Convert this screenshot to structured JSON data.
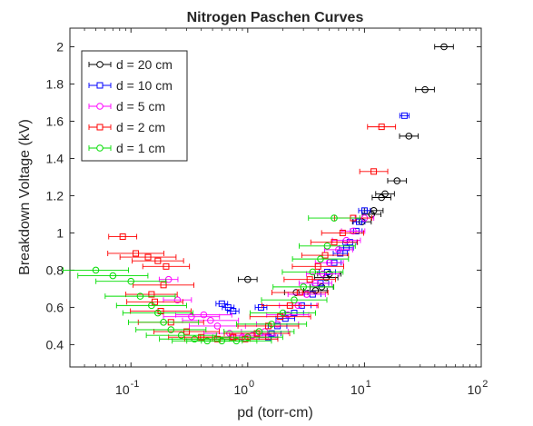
{
  "chart_data": {
    "type": "scatter",
    "title": "Nitrogen Paschen Curves",
    "xlabel": "pd (torr-cm)",
    "ylabel": "Breakdown Voltage (kV)",
    "xscale": "log",
    "xlim": [
      0.03,
      100
    ],
    "ylim": [
      0.28,
      2.1
    ],
    "grid": false,
    "legend_position": "top-left",
    "x_ticks": [
      {
        "base": "10",
        "exp": "-1",
        "value": 0.1
      },
      {
        "base": "10",
        "exp": "0",
        "value": 1
      },
      {
        "base": "10",
        "exp": "1",
        "value": 10
      },
      {
        "base": "10",
        "exp": "2",
        "value": 100
      }
    ],
    "y_ticks": [
      "0.4",
      "0.6",
      "0.8",
      "1",
      "1.2",
      "1.4",
      "1.6",
      "1.8",
      "2"
    ],
    "series": [
      {
        "name": "d = 20 cm",
        "color": "#000000",
        "marker": "circle",
        "points": [
          {
            "x": 48,
            "y": 2.0,
            "xerr": 0.08
          },
          {
            "x": 33,
            "y": 1.77,
            "xerr": 0.08
          },
          {
            "x": 24,
            "y": 1.52,
            "xerr": 0.08
          },
          {
            "x": 19,
            "y": 1.28,
            "xerr": 0.08
          },
          {
            "x": 15,
            "y": 1.21,
            "xerr": 0.08
          },
          {
            "x": 14,
            "y": 1.19,
            "xerr": 0.08
          },
          {
            "x": 12,
            "y": 1.12,
            "xerr": 0.08
          },
          {
            "x": 11.5,
            "y": 1.1,
            "xerr": 0.08
          },
          {
            "x": 9.5,
            "y": 1.06,
            "xerr": 0.08
          },
          {
            "x": 5.0,
            "y": 0.78,
            "xerr": 0.1
          },
          {
            "x": 4.7,
            "y": 0.76,
            "xerr": 0.1
          },
          {
            "x": 4.3,
            "y": 0.71,
            "xerr": 0.1
          },
          {
            "x": 3.8,
            "y": 0.69,
            "xerr": 0.1
          },
          {
            "x": 2.6,
            "y": 0.68,
            "xerr": 0.1
          },
          {
            "x": 1.0,
            "y": 0.75,
            "xerr": 0.08
          }
        ]
      },
      {
        "name": "d = 10 cm",
        "color": "#0000ff",
        "marker": "square",
        "points": [
          {
            "x": 22,
            "y": 1.63,
            "xerr": 0.04
          },
          {
            "x": 10,
            "y": 1.12,
            "xerr": 0.05
          },
          {
            "x": 9.0,
            "y": 1.06,
            "xerr": 0.05
          },
          {
            "x": 8.5,
            "y": 1.01,
            "xerr": 0.05
          },
          {
            "x": 7.5,
            "y": 0.95,
            "xerr": 0.06
          },
          {
            "x": 7.0,
            "y": 0.92,
            "xerr": 0.06
          },
          {
            "x": 6.2,
            "y": 0.89,
            "xerr": 0.06
          },
          {
            "x": 5.5,
            "y": 0.84,
            "xerr": 0.06
          },
          {
            "x": 4.8,
            "y": 0.79,
            "xerr": 0.07
          },
          {
            "x": 4.2,
            "y": 0.73,
            "xerr": 0.07
          },
          {
            "x": 3.6,
            "y": 0.67,
            "xerr": 0.07
          },
          {
            "x": 2.9,
            "y": 0.61,
            "xerr": 0.08
          },
          {
            "x": 2.5,
            "y": 0.57,
            "xerr": 0.08
          },
          {
            "x": 2.1,
            "y": 0.54,
            "xerr": 0.08
          },
          {
            "x": 1.8,
            "y": 0.5,
            "xerr": 0.08
          },
          {
            "x": 1.6,
            "y": 0.46,
            "xerr": 0.08
          },
          {
            "x": 1.5,
            "y": 0.44,
            "xerr": 0.08
          },
          {
            "x": 1.3,
            "y": 0.6,
            "xerr": 0.05
          },
          {
            "x": 0.75,
            "y": 0.58,
            "xerr": 0.05
          },
          {
            "x": 0.68,
            "y": 0.6,
            "xerr": 0.05
          },
          {
            "x": 0.6,
            "y": 0.62,
            "xerr": 0.05
          }
        ]
      },
      {
        "name": "d = 5 cm",
        "color": "#ff00ff",
        "marker": "circle",
        "points": [
          {
            "x": 10,
            "y": 1.08,
            "xerr": 0.08
          },
          {
            "x": 8,
            "y": 1.01,
            "xerr": 0.1
          },
          {
            "x": 7,
            "y": 0.96,
            "xerr": 0.12
          },
          {
            "x": 6,
            "y": 0.91,
            "xerr": 0.12
          },
          {
            "x": 5,
            "y": 0.84,
            "xerr": 0.12
          },
          {
            "x": 4.4,
            "y": 0.78,
            "xerr": 0.14
          },
          {
            "x": 3.8,
            "y": 0.73,
            "xerr": 0.14
          },
          {
            "x": 3.2,
            "y": 0.67,
            "xerr": 0.16
          },
          {
            "x": 2.7,
            "y": 0.61,
            "xerr": 0.16
          },
          {
            "x": 2.2,
            "y": 0.56,
            "xerr": 0.18
          },
          {
            "x": 1.8,
            "y": 0.51,
            "xerr": 0.18
          },
          {
            "x": 1.4,
            "y": 0.47,
            "xerr": 0.2
          },
          {
            "x": 1.1,
            "y": 0.45,
            "xerr": 0.2
          },
          {
            "x": 0.9,
            "y": 0.44,
            "xerr": 0.22
          },
          {
            "x": 0.7,
            "y": 0.46,
            "xerr": 0.22
          },
          {
            "x": 0.55,
            "y": 0.5,
            "xerr": 0.24
          },
          {
            "x": 0.48,
            "y": 0.53,
            "xerr": 0.24
          },
          {
            "x": 0.42,
            "y": 0.56,
            "xerr": 0.24
          },
          {
            "x": 0.33,
            "y": 0.55,
            "xerr": 0.24
          },
          {
            "x": 0.25,
            "y": 0.64,
            "xerr": 0.12
          },
          {
            "x": 0.21,
            "y": 0.75,
            "xerr": 0.08
          }
        ]
      },
      {
        "name": "d = 2 cm",
        "color": "#ff0000",
        "marker": "square",
        "points": [
          {
            "x": 14,
            "y": 1.57,
            "xerr": 0.12
          },
          {
            "x": 12,
            "y": 1.33,
            "xerr": 0.12
          },
          {
            "x": 8,
            "y": 1.08,
            "xerr": 0.16
          },
          {
            "x": 6.5,
            "y": 1.0,
            "xerr": 0.18
          },
          {
            "x": 5.5,
            "y": 0.95,
            "xerr": 0.2
          },
          {
            "x": 4.6,
            "y": 0.88,
            "xerr": 0.2
          },
          {
            "x": 4.0,
            "y": 0.82,
            "xerr": 0.22
          },
          {
            "x": 3.4,
            "y": 0.75,
            "xerr": 0.22
          },
          {
            "x": 2.8,
            "y": 0.68,
            "xerr": 0.24
          },
          {
            "x": 2.3,
            "y": 0.61,
            "xerr": 0.24
          },
          {
            "x": 1.9,
            "y": 0.55,
            "xerr": 0.26
          },
          {
            "x": 1.5,
            "y": 0.5,
            "xerr": 0.26
          },
          {
            "x": 1.2,
            "y": 0.46,
            "xerr": 0.28
          },
          {
            "x": 0.95,
            "y": 0.43,
            "xerr": 0.28
          },
          {
            "x": 0.75,
            "y": 0.44,
            "xerr": 0.28
          },
          {
            "x": 0.55,
            "y": 0.43,
            "xerr": 0.28
          },
          {
            "x": 0.4,
            "y": 0.44,
            "xerr": 0.28
          },
          {
            "x": 0.3,
            "y": 0.47,
            "xerr": 0.28
          },
          {
            "x": 0.22,
            "y": 0.52,
            "xerr": 0.28
          },
          {
            "x": 0.18,
            "y": 0.58,
            "xerr": 0.26
          },
          {
            "x": 0.16,
            "y": 0.63,
            "xerr": 0.24
          },
          {
            "x": 0.15,
            "y": 0.67,
            "xerr": 0.22
          },
          {
            "x": 0.19,
            "y": 0.72,
            "xerr": 0.26
          },
          {
            "x": 0.2,
            "y": 0.82,
            "xerr": 0.2
          },
          {
            "x": 0.17,
            "y": 0.85,
            "xerr": 0.22
          },
          {
            "x": 0.14,
            "y": 0.87,
            "xerr": 0.24
          },
          {
            "x": 0.11,
            "y": 0.89,
            "xerr": 0.24
          },
          {
            "x": 0.085,
            "y": 0.98,
            "xerr": 0.12
          }
        ]
      },
      {
        "name": "d = 1 cm",
        "color": "#00dd00",
        "marker": "circle",
        "points": [
          {
            "x": 5.5,
            "y": 1.08,
            "xerr": 0.22
          },
          {
            "x": 4.8,
            "y": 0.93,
            "xerr": 0.24
          },
          {
            "x": 4.2,
            "y": 0.86,
            "xerr": 0.24
          },
          {
            "x": 3.6,
            "y": 0.79,
            "xerr": 0.26
          },
          {
            "x": 3.0,
            "y": 0.71,
            "xerr": 0.26
          },
          {
            "x": 2.5,
            "y": 0.64,
            "xerr": 0.28
          },
          {
            "x": 2.0,
            "y": 0.57,
            "xerr": 0.28
          },
          {
            "x": 1.6,
            "y": 0.51,
            "xerr": 0.3
          },
          {
            "x": 1.25,
            "y": 0.47,
            "xerr": 0.3
          },
          {
            "x": 1.0,
            "y": 0.44,
            "xerr": 0.3
          },
          {
            "x": 0.8,
            "y": 0.42,
            "xerr": 0.3
          },
          {
            "x": 0.6,
            "y": 0.42,
            "xerr": 0.3
          },
          {
            "x": 0.45,
            "y": 0.42,
            "xerr": 0.3
          },
          {
            "x": 0.35,
            "y": 0.43,
            "xerr": 0.3
          },
          {
            "x": 0.27,
            "y": 0.45,
            "xerr": 0.3
          },
          {
            "x": 0.22,
            "y": 0.48,
            "xerr": 0.3
          },
          {
            "x": 0.19,
            "y": 0.52,
            "xerr": 0.3
          },
          {
            "x": 0.17,
            "y": 0.57,
            "xerr": 0.3
          },
          {
            "x": 0.15,
            "y": 0.61,
            "xerr": 0.3
          },
          {
            "x": 0.12,
            "y": 0.66,
            "xerr": 0.3
          },
          {
            "x": 0.1,
            "y": 0.74,
            "xerr": 0.3
          },
          {
            "x": 0.07,
            "y": 0.77,
            "xerr": 0.3
          },
          {
            "x": 0.05,
            "y": 0.8,
            "xerr": 0.28
          }
        ]
      }
    ]
  }
}
